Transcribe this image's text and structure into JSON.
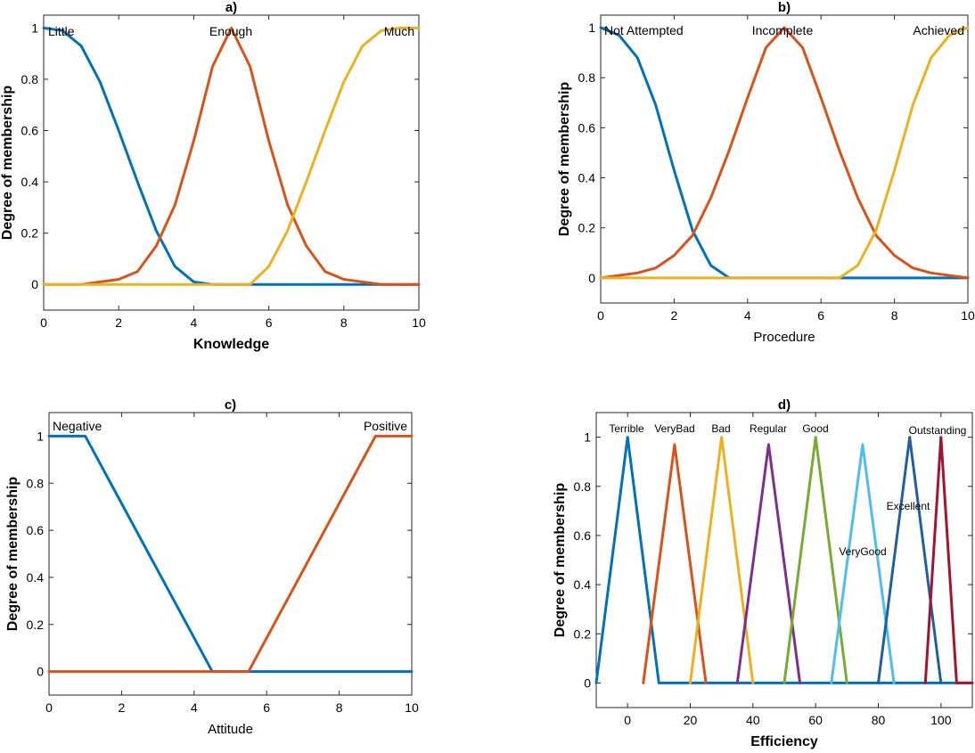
{
  "chart_data": [
    {
      "id": "a",
      "type": "line",
      "title": "a)",
      "xlabel": "Knowledge",
      "ylabel": "Degree of membership",
      "xlim": [
        0,
        10
      ],
      "ylim": [
        -0.1,
        1.05
      ],
      "xticks": [
        "0",
        "2",
        "4",
        "6",
        "8",
        "10"
      ],
      "yticks": [
        "0",
        "0.2",
        "0.4",
        "0.6",
        "0.8",
        "1"
      ],
      "series": [
        {
          "name": "Little",
          "color": "#0072BD",
          "x": [
            0,
            0.5,
            1,
            1.5,
            2,
            2.5,
            3,
            3.5,
            4,
            4.5,
            5,
            6,
            7,
            8,
            9,
            10
          ],
          "y": [
            1,
            0.99,
            0.93,
            0.79,
            0.6,
            0.4,
            0.21,
            0.07,
            0.01,
            0,
            0,
            0,
            0,
            0,
            0,
            0
          ]
        },
        {
          "name": "Enough",
          "color": "#D95319",
          "x": [
            0,
            1,
            1.5,
            2,
            2.5,
            3,
            3.5,
            4,
            4.5,
            5,
            5.5,
            6,
            6.5,
            7,
            7.5,
            8,
            8.5,
            9,
            10
          ],
          "y": [
            0,
            0,
            0.01,
            0.02,
            0.05,
            0.15,
            0.31,
            0.56,
            0.85,
            1,
            0.85,
            0.56,
            0.31,
            0.15,
            0.05,
            0.02,
            0.01,
            0,
            0
          ]
        },
        {
          "name": "Much",
          "color": "#EDB120",
          "x": [
            0,
            5,
            5.5,
            6,
            6.5,
            7,
            7.5,
            8,
            8.5,
            9,
            9.5,
            10
          ],
          "y": [
            0,
            0,
            0,
            0.07,
            0.21,
            0.4,
            0.6,
            0.79,
            0.93,
            0.99,
            1,
            1
          ]
        }
      ],
      "annotations": [
        "Little",
        "Enough",
        "Much"
      ]
    },
    {
      "id": "b",
      "type": "line",
      "title": "b)",
      "xlabel": "Procedure",
      "ylabel": "Degree of membership",
      "xlim": [
        0,
        10
      ],
      "ylim": [
        -0.1,
        1.05
      ],
      "xticks": [
        "0",
        "2",
        "4",
        "6",
        "8",
        "10"
      ],
      "yticks": [
        "0",
        "0.2",
        "0.4",
        "0.6",
        "0.8",
        "1"
      ],
      "series": [
        {
          "name": "Not Attempted",
          "color": "#0072BD",
          "x": [
            0,
            0.5,
            1,
            1.5,
            2,
            2.5,
            3,
            3.5,
            4,
            5,
            10
          ],
          "y": [
            1,
            0.97,
            0.88,
            0.69,
            0.43,
            0.19,
            0.05,
            0,
            0,
            0,
            0
          ]
        },
        {
          "name": "Incomplete",
          "color": "#D95319",
          "x": [
            0,
            1,
            1.5,
            2,
            2.5,
            3,
            3.5,
            4,
            4.5,
            5,
            5.5,
            6,
            6.5,
            7,
            7.5,
            8,
            8.5,
            9,
            10
          ],
          "y": [
            0,
            0.02,
            0.04,
            0.09,
            0.17,
            0.32,
            0.51,
            0.72,
            0.92,
            1,
            0.92,
            0.72,
            0.51,
            0.32,
            0.17,
            0.09,
            0.04,
            0.02,
            0
          ]
        },
        {
          "name": "Achieved",
          "color": "#EDB120",
          "x": [
            0,
            6.5,
            7,
            7.5,
            8,
            8.5,
            9,
            9.5,
            10
          ],
          "y": [
            0,
            0,
            0.05,
            0.19,
            0.43,
            0.69,
            0.88,
            0.97,
            1
          ]
        }
      ],
      "annotations": [
        "Not Attempted",
        "Incomplete",
        "Achieved"
      ]
    },
    {
      "id": "c",
      "type": "line",
      "title": "c)",
      "xlabel": "Attitude",
      "ylabel": "Degree of membership",
      "xlim": [
        0,
        10
      ],
      "ylim": [
        -0.1,
        1.1
      ],
      "xticks": [
        "0",
        "2",
        "4",
        "6",
        "8",
        "10"
      ],
      "yticks": [
        "0",
        "0.2",
        "0.4",
        "0.6",
        "0.8",
        "1"
      ],
      "series": [
        {
          "name": "Negative",
          "color": "#0072BD",
          "x": [
            0,
            1,
            4.5,
            10
          ],
          "y": [
            1,
            1,
            0,
            0
          ]
        },
        {
          "name": "Positive",
          "color": "#D95319",
          "x": [
            0,
            5.5,
            9,
            10
          ],
          "y": [
            0,
            0,
            1,
            1
          ]
        }
      ],
      "annotations": [
        "Negative",
        "Positive"
      ]
    },
    {
      "id": "d",
      "type": "line",
      "title": "d)",
      "xlabel": "Efficiency",
      "ylabel": "Degree of membership",
      "xlim": [
        -10,
        110
      ],
      "ylim": [
        -0.1,
        1.1
      ],
      "xticks": [
        "0",
        "20",
        "40",
        "60",
        "80",
        "100"
      ],
      "yticks": [
        "0",
        "0.2",
        "0.4",
        "0.6",
        "0.8",
        "1"
      ],
      "series": [
        {
          "name": "Terrible",
          "color": "#0072BD",
          "x": [
            -10,
            -10,
            0,
            10,
            110
          ],
          "y": [
            0,
            0,
            1,
            0,
            0
          ]
        },
        {
          "name": "VeryBad",
          "color": "#D95319",
          "x": [
            5,
            15,
            25
          ],
          "y": [
            0,
            0.97,
            0
          ]
        },
        {
          "name": "Bad",
          "color": "#EDB120",
          "x": [
            20,
            30,
            40
          ],
          "y": [
            0,
            1,
            0
          ]
        },
        {
          "name": "Regular",
          "color": "#7E2F8E",
          "x": [
            35,
            45,
            55
          ],
          "y": [
            0,
            0.97,
            0
          ]
        },
        {
          "name": "Good",
          "color": "#77AC30",
          "x": [
            50,
            60,
            70
          ],
          "y": [
            0,
            1,
            0
          ]
        },
        {
          "name": "VeryGood",
          "color": "#4DBEEE",
          "x": [
            65,
            75,
            85
          ],
          "y": [
            0,
            0.97,
            0
          ]
        },
        {
          "name": "Excellent",
          "color": "#205FA0",
          "x": [
            80,
            90,
            100
          ],
          "y": [
            0,
            1,
            0
          ]
        },
        {
          "name": "Outstanding",
          "color": "#A2142F",
          "x": [
            95,
            100,
            105,
            110
          ],
          "y": [
            0,
            1,
            0,
            0
          ]
        }
      ],
      "annotations": [
        "Terrible",
        "VeryBad",
        "Bad",
        "Regular",
        "Good",
        "Excellent",
        "VeryGood",
        "Outstanding"
      ]
    }
  ]
}
